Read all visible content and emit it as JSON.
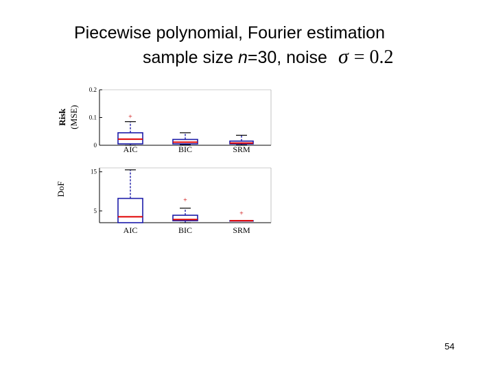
{
  "title": {
    "line1": "Piecewise polynomial, Fourier estimation",
    "line2_prefix": "sample size ",
    "line2_n": "n",
    "line2_mid": "=30, noise",
    "sigma_symbol": "σ",
    "sigma_eq": "= 0.2"
  },
  "page_number": "54",
  "colors": {
    "box": "#1a1aa8",
    "median": "#e00000",
    "outlier": "#cc0000",
    "axis": "#000000"
  },
  "chart_data": [
    {
      "type": "box",
      "ylabel_line1": "Risk",
      "ylabel_line2": "(MSE)",
      "ylim": [
        0,
        0.2
      ],
      "yticks": [
        0,
        0.1,
        0.2
      ],
      "ytick_labels": [
        "0",
        "0.1",
        "0.2"
      ],
      "categories": [
        "AIC",
        "BIC",
        "SRM"
      ],
      "boxes": [
        {
          "label": "AIC",
          "whisker_low": 0.0,
          "q1": 0.005,
          "median": 0.022,
          "q3": 0.045,
          "whisker_high": 0.085,
          "outliers": [
            0.102
          ]
        },
        {
          "label": "BIC",
          "whisker_low": 0.002,
          "q1": 0.005,
          "median": 0.011,
          "q3": 0.021,
          "whisker_high": 0.045,
          "outliers": []
        },
        {
          "label": "SRM",
          "whisker_low": 0.001,
          "q1": 0.005,
          "median": 0.008,
          "q3": 0.015,
          "whisker_high": 0.036,
          "outliers": []
        }
      ]
    },
    {
      "type": "box",
      "ylabel": "DoF",
      "ylim": [
        2,
        16
      ],
      "yticks": [
        5,
        15
      ],
      "ytick_labels": [
        "5",
        "15"
      ],
      "categories": [
        "AIC",
        "BIC",
        "SRM"
      ],
      "boxes": [
        {
          "label": "AIC",
          "whisker_low": 2,
          "q1": 2,
          "median": 3.5,
          "q3": 8.2,
          "whisker_high": 15.5,
          "outliers": []
        },
        {
          "label": "BIC",
          "whisker_low": 2,
          "q1": 2.5,
          "median": 2.8,
          "q3": 3.9,
          "whisker_high": 5.7,
          "outliers": [
            7.8
          ]
        },
        {
          "label": "SRM",
          "whisker_low": 2.5,
          "q1": 2.5,
          "median": 2.5,
          "q3": 2.5,
          "whisker_high": 2.5,
          "outliers": [
            4.4
          ]
        }
      ]
    }
  ]
}
